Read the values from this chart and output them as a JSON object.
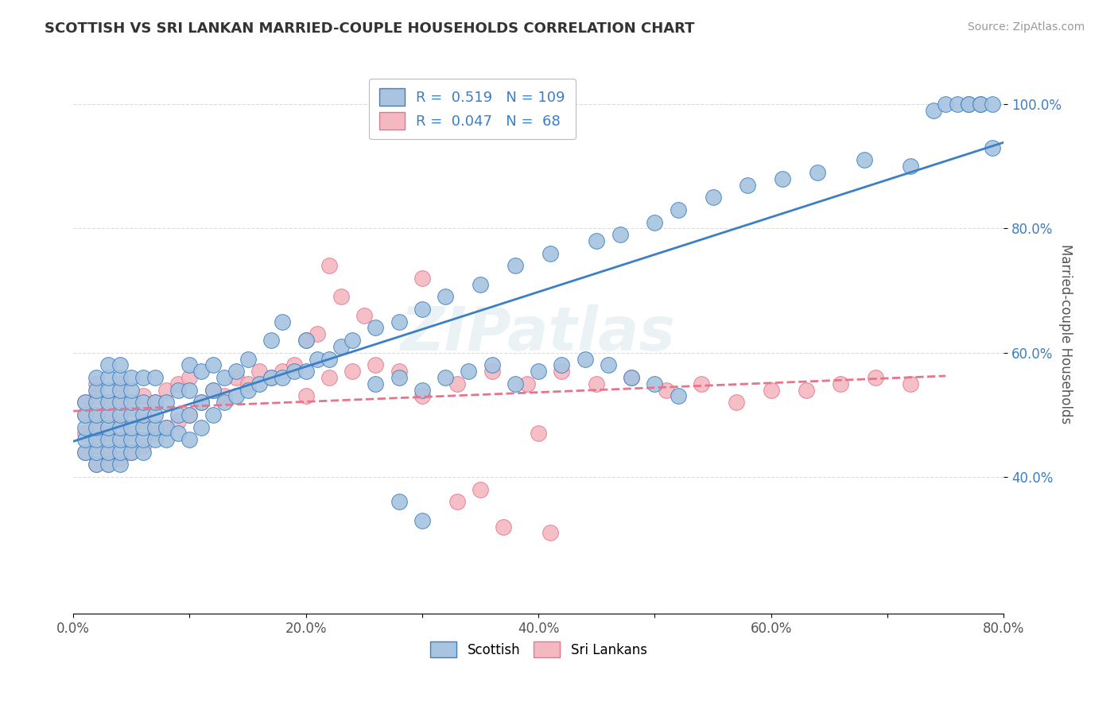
{
  "title": "SCOTTISH VS SRI LANKAN MARRIED-COUPLE HOUSEHOLDS CORRELATION CHART",
  "source": "Source: ZipAtlas.com",
  "ylabel": "Married-couple Households",
  "xlim": [
    0.0,
    0.8
  ],
  "ylim": [
    0.18,
    1.08
  ],
  "xtick_labels": [
    "0.0%",
    "",
    "20.0%",
    "",
    "40.0%",
    "",
    "60.0%",
    "",
    "80.0%"
  ],
  "xtick_vals": [
    0.0,
    0.1,
    0.2,
    0.3,
    0.4,
    0.5,
    0.6,
    0.7,
    0.8
  ],
  "ytick_labels": [
    "40.0%",
    "60.0%",
    "80.0%",
    "100.0%"
  ],
  "ytick_vals": [
    0.4,
    0.6,
    0.8,
    1.0
  ],
  "scottish_R": 0.519,
  "scottish_N": 109,
  "srilanka_R": 0.047,
  "srilanka_N": 68,
  "scottish_color": "#a8c4e0",
  "srilanka_color": "#f4b8c1",
  "scottish_line_color": "#3b7fc4",
  "srilanka_line_color": "#e8748a",
  "legend_color": "#3b7fc4",
  "scottish_x": [
    0.01,
    0.01,
    0.01,
    0.01,
    0.01,
    0.02,
    0.02,
    0.02,
    0.02,
    0.02,
    0.02,
    0.02,
    0.02,
    0.03,
    0.03,
    0.03,
    0.03,
    0.03,
    0.03,
    0.03,
    0.03,
    0.03,
    0.04,
    0.04,
    0.04,
    0.04,
    0.04,
    0.04,
    0.04,
    0.04,
    0.04,
    0.05,
    0.05,
    0.05,
    0.05,
    0.05,
    0.05,
    0.05,
    0.06,
    0.06,
    0.06,
    0.06,
    0.06,
    0.06,
    0.07,
    0.07,
    0.07,
    0.07,
    0.07,
    0.08,
    0.08,
    0.08,
    0.09,
    0.09,
    0.09,
    0.1,
    0.1,
    0.1,
    0.1,
    0.11,
    0.11,
    0.11,
    0.12,
    0.12,
    0.12,
    0.13,
    0.13,
    0.14,
    0.14,
    0.15,
    0.15,
    0.16,
    0.17,
    0.17,
    0.18,
    0.18,
    0.19,
    0.2,
    0.2,
    0.21,
    0.22,
    0.23,
    0.24,
    0.26,
    0.28,
    0.3,
    0.32,
    0.35,
    0.38,
    0.41,
    0.45,
    0.47,
    0.5,
    0.52,
    0.55,
    0.58,
    0.61,
    0.64,
    0.68,
    0.72,
    0.74,
    0.75,
    0.76,
    0.77,
    0.77,
    0.78,
    0.78,
    0.79,
    0.79
  ],
  "scottish_y": [
    0.44,
    0.46,
    0.48,
    0.5,
    0.52,
    0.42,
    0.44,
    0.46,
    0.48,
    0.5,
    0.52,
    0.54,
    0.56,
    0.42,
    0.44,
    0.46,
    0.48,
    0.5,
    0.52,
    0.54,
    0.56,
    0.58,
    0.42,
    0.44,
    0.46,
    0.48,
    0.5,
    0.52,
    0.54,
    0.56,
    0.58,
    0.44,
    0.46,
    0.48,
    0.5,
    0.52,
    0.54,
    0.56,
    0.44,
    0.46,
    0.48,
    0.5,
    0.52,
    0.56,
    0.46,
    0.48,
    0.5,
    0.52,
    0.56,
    0.46,
    0.48,
    0.52,
    0.47,
    0.5,
    0.54,
    0.46,
    0.5,
    0.54,
    0.58,
    0.48,
    0.52,
    0.57,
    0.5,
    0.54,
    0.58,
    0.52,
    0.56,
    0.53,
    0.57,
    0.54,
    0.59,
    0.55,
    0.56,
    0.62,
    0.56,
    0.65,
    0.57,
    0.57,
    0.62,
    0.59,
    0.59,
    0.61,
    0.62,
    0.64,
    0.65,
    0.67,
    0.69,
    0.71,
    0.74,
    0.76,
    0.78,
    0.79,
    0.81,
    0.83,
    0.85,
    0.87,
    0.88,
    0.89,
    0.91,
    0.9,
    0.99,
    1.0,
    1.0,
    1.0,
    1.0,
    1.0,
    1.0,
    1.0,
    0.93
  ],
  "srilanka_x": [
    0.01,
    0.01,
    0.01,
    0.01,
    0.02,
    0.02,
    0.02,
    0.02,
    0.02,
    0.02,
    0.03,
    0.03,
    0.03,
    0.03,
    0.03,
    0.04,
    0.04,
    0.04,
    0.04,
    0.04,
    0.05,
    0.05,
    0.05,
    0.06,
    0.06,
    0.06,
    0.07,
    0.07,
    0.08,
    0.08,
    0.09,
    0.09,
    0.1,
    0.1,
    0.11,
    0.12,
    0.13,
    0.14,
    0.15,
    0.16,
    0.17,
    0.18,
    0.19,
    0.2,
    0.22,
    0.24,
    0.26,
    0.28,
    0.3,
    0.33,
    0.36,
    0.39,
    0.42,
    0.45,
    0.48,
    0.51,
    0.54,
    0.57,
    0.6,
    0.63,
    0.66,
    0.69,
    0.72,
    0.3,
    0.2,
    0.25,
    0.35,
    0.4
  ],
  "srilanka_y": [
    0.44,
    0.47,
    0.5,
    0.52,
    0.42,
    0.45,
    0.48,
    0.5,
    0.53,
    0.55,
    0.42,
    0.44,
    0.47,
    0.5,
    0.52,
    0.43,
    0.46,
    0.49,
    0.52,
    0.55,
    0.44,
    0.47,
    0.51,
    0.45,
    0.49,
    0.53,
    0.47,
    0.52,
    0.48,
    0.54,
    0.49,
    0.55,
    0.5,
    0.56,
    0.52,
    0.54,
    0.53,
    0.56,
    0.55,
    0.57,
    0.56,
    0.57,
    0.58,
    0.53,
    0.56,
    0.57,
    0.58,
    0.57,
    0.53,
    0.55,
    0.57,
    0.55,
    0.57,
    0.55,
    0.56,
    0.54,
    0.55,
    0.52,
    0.54,
    0.54,
    0.55,
    0.56,
    0.55,
    0.72,
    0.62,
    0.66,
    0.38,
    0.47
  ],
  "extra_scottish_x": [
    0.26,
    0.28,
    0.3,
    0.32,
    0.34,
    0.36,
    0.38,
    0.4,
    0.42,
    0.44,
    0.46,
    0.48,
    0.5,
    0.52,
    0.28,
    0.3
  ],
  "extra_scottish_y": [
    0.55,
    0.56,
    0.54,
    0.56,
    0.57,
    0.58,
    0.55,
    0.57,
    0.58,
    0.59,
    0.58,
    0.56,
    0.55,
    0.53,
    0.36,
    0.33
  ],
  "extra_srilanka_x": [
    0.21,
    0.23,
    0.33,
    0.37,
    0.41,
    0.22
  ],
  "extra_srilanka_y": [
    0.63,
    0.69,
    0.36,
    0.32,
    0.31,
    0.74
  ],
  "background_color": "#ffffff",
  "grid_color": "#d8d8d8"
}
